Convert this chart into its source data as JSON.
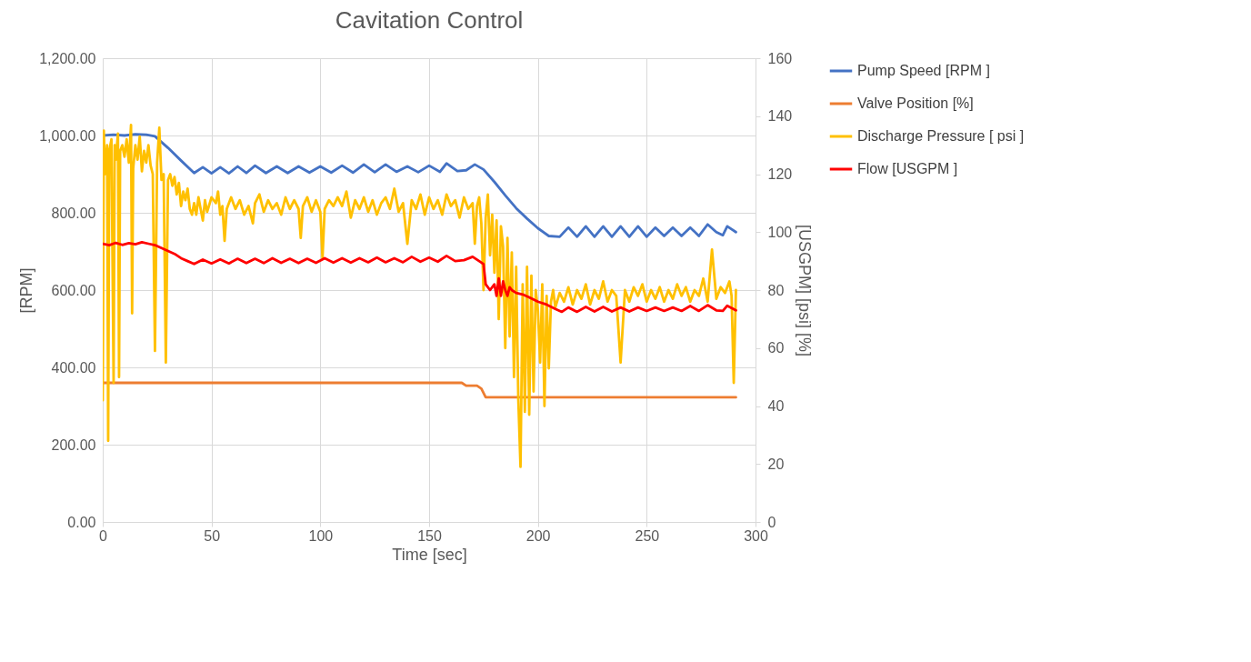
{
  "chart_data": {
    "type": "line",
    "title": "Cavitation Control",
    "xlabel": "Time [sec]",
    "ylabel": "[RPM]",
    "y2label": "[USGPM] [psi]  [%]",
    "xlim": [
      0,
      300
    ],
    "xticks": [
      0,
      50,
      100,
      150,
      200,
      250,
      300
    ],
    "ylim": [
      0,
      1200
    ],
    "yticks": [
      {
        "value": 0,
        "label": "0.00"
      },
      {
        "value": 200,
        "label": "200.00"
      },
      {
        "value": 400,
        "label": "400.00"
      },
      {
        "value": 600,
        "label": "600.00"
      },
      {
        "value": 800,
        "label": "800.00"
      },
      {
        "value": 1000,
        "label": "1,000.00"
      },
      {
        "value": 1200,
        "label": "1,200.00"
      }
    ],
    "y2lim": [
      0,
      160
    ],
    "y2ticks": [
      0,
      20,
      40,
      60,
      80,
      100,
      120,
      140,
      160
    ],
    "grid": true,
    "legend": "right",
    "line_style": "solid",
    "marker": "none",
    "series": [
      {
        "name": "Pump Speed [RPM ]",
        "color": "#4472c4",
        "x": [
          0,
          5,
          10,
          15,
          20,
          24,
          30,
          36,
          42,
          46,
          50,
          54,
          58,
          62,
          66,
          70,
          75,
          80,
          85,
          90,
          95,
          100,
          105,
          110,
          115,
          120,
          125,
          130,
          135,
          140,
          145,
          150,
          155,
          158,
          163,
          167,
          171,
          175,
          180,
          185,
          190,
          195,
          200,
          205,
          210,
          214,
          218,
          222,
          226,
          230,
          234,
          238,
          242,
          246,
          250,
          254,
          258,
          262,
          266,
          270,
          274,
          278,
          282,
          285,
          287,
          291
        ],
        "values": [
          1000,
          1002,
          1000,
          1003,
          1002,
          998,
          968,
          935,
          903,
          918,
          902,
          918,
          902,
          920,
          903,
          922,
          903,
          920,
          903,
          920,
          904,
          920,
          904,
          922,
          904,
          925,
          905,
          925,
          906,
          920,
          905,
          922,
          906,
          928,
          908,
          910,
          925,
          912,
          880,
          845,
          812,
          785,
          760,
          740,
          738,
          762,
          738,
          765,
          738,
          765,
          738,
          765,
          738,
          765,
          738,
          762,
          740,
          762,
          740,
          762,
          740,
          770,
          750,
          742,
          765,
          750
        ]
      },
      {
        "name": "Valve Position [%]",
        "color": "#ed7d31",
        "axis": "y2",
        "x": [
          0,
          165,
          167,
          172,
          174,
          176,
          291
        ],
        "values": [
          48,
          48,
          47,
          47,
          46,
          43,
          43
        ]
      },
      {
        "name": "Discharge Pressure [ psi ]",
        "color": "#ffc000",
        "axis": "y2",
        "x": [
          0,
          0.5,
          1,
          2,
          2.5,
          3,
          4,
          5,
          5.5,
          6,
          7,
          7.5,
          8,
          9,
          10,
          11,
          12,
          13,
          13.5,
          14,
          15,
          16,
          17,
          18,
          19,
          20,
          21,
          22,
          23,
          24,
          25,
          26,
          27,
          28,
          29,
          30,
          31,
          32,
          33,
          34,
          35,
          36,
          37,
          38,
          39,
          40,
          41,
          42,
          43,
          44,
          45,
          46,
          47,
          48,
          50,
          52,
          53,
          54,
          55,
          56,
          57,
          59,
          61,
          63,
          65,
          67,
          69,
          70,
          72,
          74,
          76,
          78,
          80,
          82,
          84,
          86,
          88,
          90,
          91,
          92,
          94,
          96,
          98,
          100,
          101,
          102,
          104,
          106,
          108,
          110,
          112,
          114,
          116,
          118,
          120,
          122,
          124,
          126,
          128,
          130,
          132,
          134,
          136,
          138,
          140,
          142,
          144,
          146,
          148,
          150,
          152,
          154,
          156,
          158,
          160,
          162,
          164,
          166,
          168,
          170,
          171,
          172,
          173,
          174,
          175,
          176,
          177,
          178,
          179,
          180,
          181,
          182,
          183,
          184,
          185,
          186,
          187,
          188,
          189,
          190,
          191,
          192,
          193,
          194,
          195,
          196,
          197,
          198,
          199,
          200,
          201,
          202,
          203,
          204,
          205,
          206,
          207,
          208,
          210,
          212,
          214,
          216,
          218,
          220,
          222,
          224,
          226,
          228,
          230,
          232,
          234,
          236,
          238,
          240,
          242,
          244,
          246,
          248,
          250,
          252,
          254,
          256,
          258,
          260,
          262,
          264,
          266,
          268,
          270,
          272,
          274,
          276,
          278,
          280,
          282,
          284,
          286,
          288,
          289,
          290,
          291
        ],
        "values": [
          42,
          135,
          120,
          130,
          28,
          128,
          132,
          48,
          130,
          125,
          134,
          50,
          128,
          130,
          126,
          132,
          124,
          137,
          72,
          122,
          130,
          125,
          133,
          121,
          128,
          124,
          130,
          123,
          120,
          59,
          124,
          136,
          118,
          120,
          55,
          118,
          120,
          116,
          119,
          113,
          117,
          109,
          114,
          111,
          115,
          108,
          106,
          110,
          106,
          112,
          108,
          104,
          111,
          107,
          112,
          110,
          114,
          106,
          109,
          97,
          108,
          112,
          108,
          111,
          106,
          109,
          103,
          110,
          113,
          107,
          111,
          108,
          110,
          106,
          112,
          108,
          111,
          108,
          98,
          109,
          112,
          107,
          111,
          107,
          91,
          108,
          111,
          109,
          112,
          109,
          114,
          105,
          111,
          108,
          112,
          107,
          111,
          106,
          110,
          112,
          108,
          115,
          107,
          110,
          96,
          111,
          108,
          113,
          106,
          112,
          108,
          111,
          106,
          113,
          109,
          111,
          105,
          112,
          108,
          110,
          96,
          109,
          112,
          103,
          80,
          105,
          113,
          92,
          106,
          86,
          104,
          70,
          102,
          95,
          60,
          98,
          64,
          93,
          50,
          88,
          42,
          19,
          82,
          38,
          88,
          37,
          85,
          45,
          80,
          73,
          55,
          82,
          40,
          78,
          53,
          76,
          80,
          74,
          79,
          76,
          81,
          75,
          80,
          77,
          82,
          75,
          80,
          77,
          83,
          76,
          80,
          78,
          55,
          80,
          76,
          81,
          78,
          82,
          76,
          80,
          77,
          81,
          76,
          80,
          77,
          82,
          78,
          81,
          76,
          80,
          78,
          84,
          76,
          94,
          77,
          81,
          79,
          83,
          78,
          48,
          80
        ]
      },
      {
        "name": "Flow [USGPM ]",
        "color": "#ff0000",
        "axis": "y2",
        "x": [
          0,
          3,
          6,
          9,
          12,
          15,
          18,
          21,
          24,
          27,
          30,
          33,
          36,
          39,
          42,
          46,
          50,
          54,
          58,
          62,
          66,
          70,
          74,
          78,
          82,
          86,
          90,
          94,
          98,
          102,
          106,
          110,
          114,
          118,
          122,
          126,
          130,
          134,
          138,
          142,
          146,
          150,
          154,
          158,
          162,
          166,
          170,
          173,
          175,
          176,
          178,
          180,
          181,
          182,
          183,
          184,
          185,
          186,
          187,
          188,
          190,
          193,
          196,
          200,
          204,
          208,
          211,
          214,
          218,
          222,
          226,
          230,
          234,
          238,
          242,
          246,
          250,
          254,
          258,
          262,
          266,
          270,
          274,
          278,
          282,
          285,
          287,
          291
        ],
        "values": [
          96,
          95.5,
          96.3,
          95.6,
          96.2,
          95.8,
          96.5,
          96,
          95.5,
          94.5,
          93.5,
          92.5,
          91,
          90,
          89,
          90.5,
          89.2,
          90.6,
          89.2,
          90.8,
          89.3,
          90.8,
          89.3,
          91,
          89.4,
          90.8,
          89.3,
          90.8,
          89.4,
          91,
          89.5,
          91,
          89.5,
          91,
          89.6,
          91.2,
          89.6,
          91,
          89.6,
          91.5,
          89.8,
          91.2,
          89.8,
          91.8,
          90,
          90.3,
          91.5,
          90,
          89,
          82,
          80,
          82,
          78,
          84,
          78,
          83,
          80,
          78,
          81,
          80,
          79,
          78.5,
          77.5,
          76,
          75,
          73.5,
          72.5,
          74,
          72.5,
          74.2,
          72.6,
          74.2,
          72.6,
          74,
          72.6,
          74,
          72.8,
          74,
          72.8,
          74,
          72.8,
          74.5,
          72.8,
          74.8,
          73,
          72.8,
          74.6,
          73
        ]
      }
    ]
  }
}
